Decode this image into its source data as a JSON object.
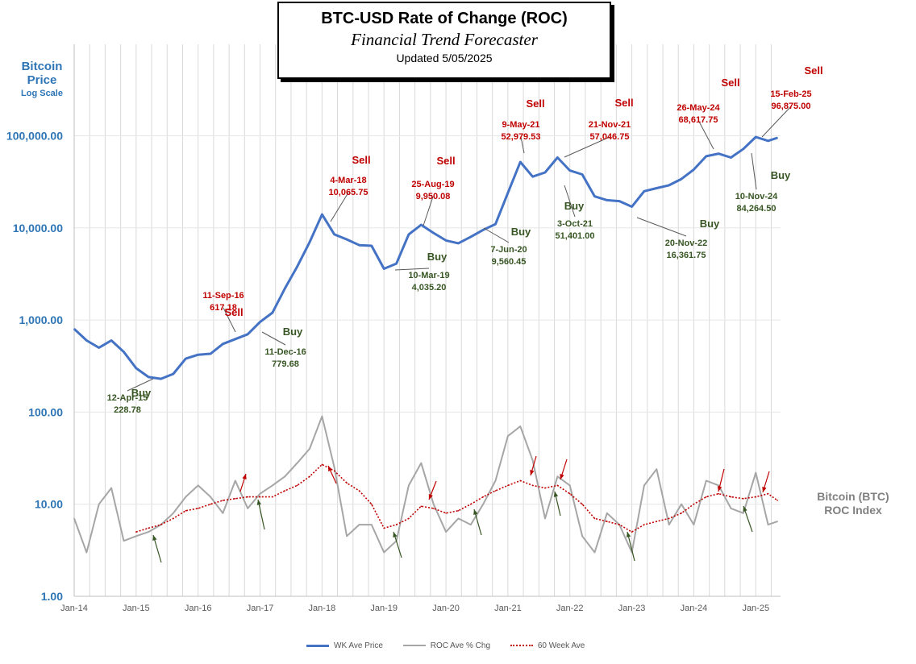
{
  "header": {
    "title": "BTC-USD Rate of Change (ROC)",
    "subtitle": "Financial Trend Forecaster",
    "updated": "Updated  5/05/2025"
  },
  "left_axis_label": {
    "line1": "Bitcoin",
    "line2": "Price",
    "line3": "Log Scale"
  },
  "right_axis_label": {
    "line1": "Bitcoin (BTC)",
    "line2": "ROC Index"
  },
  "colors": {
    "price": "#4472c4",
    "roc": "#a6a6a6",
    "avg": "#c00000",
    "sell": "#c00000",
    "buy": "#375623",
    "axis_title": "#2e75b6"
  },
  "chart_data": {
    "type": "line",
    "y_scale": "log",
    "ylim": [
      1,
      1000000
    ],
    "y_tick_labels": [
      "1.00",
      "10.00",
      "100.00",
      "1,000.00",
      "10,000.00",
      "100,000.00"
    ],
    "x_tick_labels": [
      "Jan-14",
      "Jan-15",
      "Jan-16",
      "Jan-17",
      "Jan-18",
      "Jan-19",
      "Jan-20",
      "Jan-21",
      "Jan-22",
      "Jan-23",
      "Jan-24",
      "Jan-25"
    ],
    "grid": "vertical",
    "legend_position": "bottom",
    "x": [
      2014.0,
      2014.2,
      2014.4,
      2014.6,
      2014.8,
      2015.0,
      2015.2,
      2015.4,
      2015.6,
      2015.8,
      2016.0,
      2016.2,
      2016.4,
      2016.6,
      2016.8,
      2017.0,
      2017.2,
      2017.4,
      2017.6,
      2017.8,
      2018.0,
      2018.2,
      2018.4,
      2018.6,
      2018.8,
      2019.0,
      2019.2,
      2019.4,
      2019.6,
      2019.8,
      2020.0,
      2020.2,
      2020.4,
      2020.6,
      2020.8,
      2021.0,
      2021.2,
      2021.4,
      2021.6,
      2021.8,
      2022.0,
      2022.2,
      2022.4,
      2022.6,
      2022.8,
      2023.0,
      2023.2,
      2023.4,
      2023.6,
      2023.8,
      2024.0,
      2024.2,
      2024.4,
      2024.6,
      2024.8,
      2025.0,
      2025.2,
      2025.35
    ],
    "series": [
      {
        "name": "WK Ave Price",
        "values": [
          800,
          600,
          500,
          600,
          450,
          300,
          240,
          230,
          260,
          380,
          420,
          430,
          550,
          620,
          700,
          950,
          1200,
          2200,
          3800,
          7000,
          14000,
          8500,
          7500,
          6500,
          6400,
          3600,
          4100,
          8500,
          10800,
          8800,
          7300,
          6800,
          8000,
          9500,
          11000,
          24000,
          52000,
          36000,
          40000,
          58000,
          42000,
          38000,
          22000,
          20000,
          19500,
          17000,
          25000,
          27000,
          29000,
          34000,
          43000,
          60000,
          64000,
          58000,
          72000,
          97000,
          88000,
          95000
        ]
      },
      {
        "name": "ROC Ave % Chg",
        "values": [
          7,
          3,
          10,
          15,
          4,
          4.5,
          5,
          6,
          8,
          12,
          16,
          12,
          8,
          18,
          9,
          13,
          16,
          20,
          28,
          40,
          90,
          25,
          4.5,
          6,
          6,
          3,
          4,
          16,
          28,
          10,
          5,
          7,
          6,
          10,
          18,
          55,
          70,
          30,
          7,
          20,
          16,
          4.5,
          3,
          8,
          6,
          3,
          16,
          24,
          6,
          10,
          6,
          18,
          16,
          9,
          8,
          22,
          6,
          6.5
        ]
      },
      {
        "name": "60 Week Ave",
        "values": [
          null,
          null,
          null,
          null,
          null,
          5,
          5.5,
          6,
          7,
          8.5,
          9,
          10,
          11,
          11.5,
          12,
          12,
          12,
          14,
          16,
          20,
          27,
          23,
          17,
          14,
          10,
          5.5,
          6,
          7,
          9.5,
          9,
          8,
          8.5,
          10,
          12,
          14,
          16,
          18,
          16,
          15,
          16,
          13,
          10,
          7,
          6.5,
          6,
          5,
          6,
          6.5,
          7,
          8,
          10,
          12,
          13,
          12,
          11.5,
          12,
          13,
          11
        ]
      }
    ],
    "annotations": [
      {
        "kind": "Buy",
        "date": "12-Apr-15",
        "value": "228.78"
      },
      {
        "kind": "Sell",
        "date": "11-Sep-16",
        "value": "617.18"
      },
      {
        "kind": "Buy",
        "date": "11-Dec-16",
        "value": "779.68"
      },
      {
        "kind": "Sell",
        "date": "4-Mar-18",
        "value": "10,065.75"
      },
      {
        "kind": "Buy",
        "date": "10-Mar-19",
        "value": "4,035.20"
      },
      {
        "kind": "Sell",
        "date": "25-Aug-19",
        "value": "9,950.08"
      },
      {
        "kind": "Buy",
        "date": "7-Jun-20",
        "value": "9,560.45"
      },
      {
        "kind": "Sell",
        "date": "9-May-21",
        "value": "52,979.53"
      },
      {
        "kind": "Buy",
        "date": "3-Oct-21",
        "value": "51,401.00"
      },
      {
        "kind": "Sell",
        "date": "21-Nov-21",
        "value": "57,046.75"
      },
      {
        "kind": "Buy",
        "date": "20-Nov-22",
        "value": "16,361.75"
      },
      {
        "kind": "Sell",
        "date": "26-May-24",
        "value": "68,617.75"
      },
      {
        "kind": "Buy",
        "date": "10-Nov-24",
        "value": "84,264.50"
      },
      {
        "kind": "Sell",
        "date": "15-Feb-25",
        "value": "96,875.00"
      }
    ]
  }
}
